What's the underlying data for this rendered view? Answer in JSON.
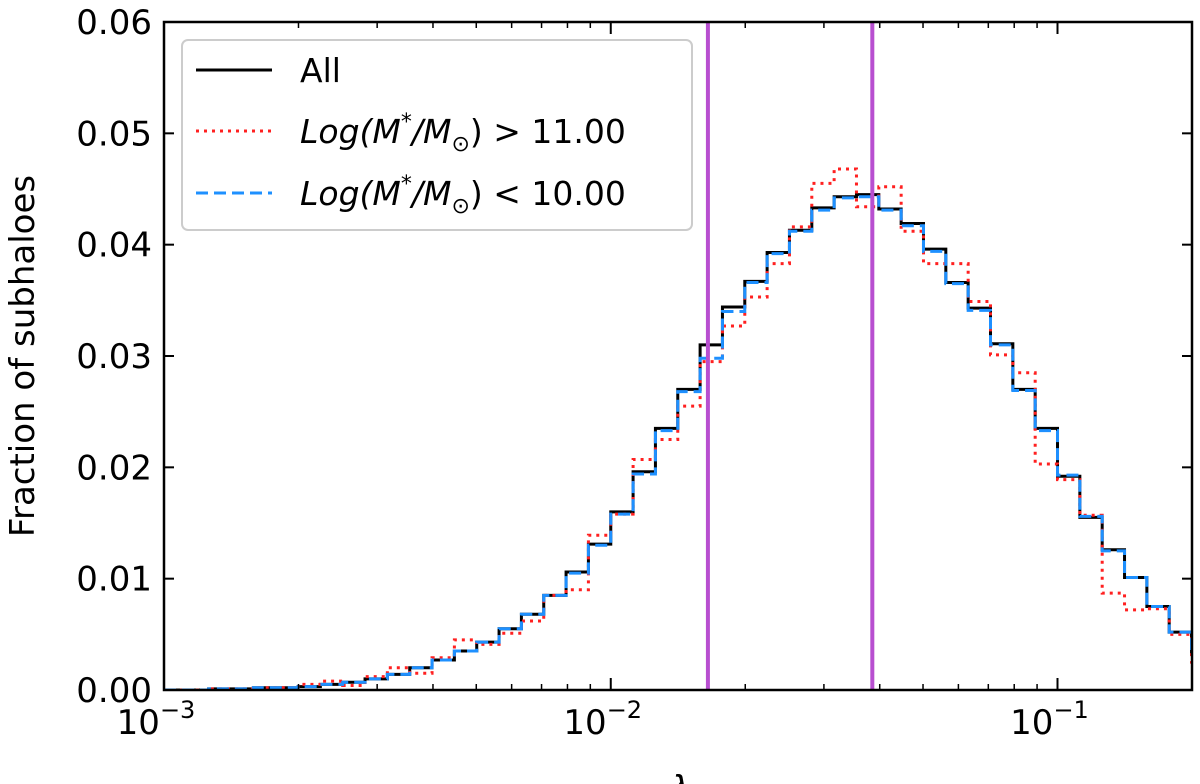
{
  "chart_data": {
    "type": "histogram",
    "xscale": "log",
    "xlim": [
      0.001,
      0.2
    ],
    "ylim": [
      0,
      0.06
    ],
    "xlabel": "λ",
    "ylabel": "Fraction of subhaloes",
    "x_ticks": [
      {
        "value": 0.001,
        "base": "10",
        "exp": "−3"
      },
      {
        "value": 0.01,
        "base": "10",
        "exp": "−2"
      },
      {
        "value": 0.1,
        "base": "10",
        "exp": "−1"
      }
    ],
    "y_ticks": [
      {
        "value": 0.0,
        "label": "0.00"
      },
      {
        "value": 0.01,
        "label": "0.01"
      },
      {
        "value": 0.02,
        "label": "0.02"
      },
      {
        "value": 0.03,
        "label": "0.03"
      },
      {
        "value": 0.04,
        "label": "0.04"
      },
      {
        "value": 0.05,
        "label": "0.05"
      },
      {
        "value": 0.06,
        "label": "0.06"
      }
    ],
    "bin_edges_log10": {
      "start": -3.0,
      "step": 0.05,
      "count": 47
    },
    "series": [
      {
        "name": "All",
        "legend_label": "All",
        "color": "#000000",
        "style": "solid",
        "values": [
          0.0,
          0.0,
          0.0001,
          0.0001,
          0.0002,
          0.0002,
          0.0003,
          0.0005,
          0.0007,
          0.001,
          0.0014,
          0.002,
          0.0027,
          0.0035,
          0.0043,
          0.0055,
          0.0068,
          0.0085,
          0.0106,
          0.0131,
          0.016,
          0.0196,
          0.0235,
          0.027,
          0.031,
          0.0344,
          0.0367,
          0.0393,
          0.0413,
          0.0433,
          0.0443,
          0.0445,
          0.0432,
          0.0419,
          0.0396,
          0.0366,
          0.0343,
          0.0311,
          0.027,
          0.0235,
          0.0192,
          0.0155,
          0.0126,
          0.0101,
          0.0075,
          0.0052,
          0.0032
        ]
      },
      {
        "name": "high-mass",
        "legend_label": "Log(M*/M⊙) > 11.00",
        "legend_main": "Log(M",
        "legend_sup": "*",
        "legend_mid": "/M",
        "legend_sub": "⊙",
        "legend_tail": ") > 11.00",
        "color": "#ff2020",
        "style": "dotted",
        "values": [
          0.0,
          0.0,
          0.0001,
          0.0001,
          0.0002,
          0.0002,
          0.0005,
          0.0008,
          0.0004,
          0.0012,
          0.002,
          0.0015,
          0.0029,
          0.0045,
          0.0041,
          0.0051,
          0.0062,
          0.0085,
          0.009,
          0.0139,
          0.0158,
          0.0207,
          0.0225,
          0.0255,
          0.0295,
          0.0327,
          0.0353,
          0.0383,
          0.0416,
          0.0455,
          0.0468,
          0.0434,
          0.0452,
          0.0412,
          0.0383,
          0.0383,
          0.0349,
          0.0301,
          0.0285,
          0.0203,
          0.0189,
          0.0157,
          0.0087,
          0.0072,
          0.0073,
          0.005,
          0.0025
        ]
      },
      {
        "name": "low-mass",
        "legend_label": "Log(M*/M⊙) < 10.00",
        "legend_main": "Log(M",
        "legend_sup": "*",
        "legend_mid": "/M",
        "legend_sub": "⊙",
        "legend_tail": ") < 10.00",
        "color": "#1e90ff",
        "style": "dashed",
        "values": [
          0.0,
          0.0,
          0.0001,
          0.0001,
          0.0002,
          0.0002,
          0.0003,
          0.0005,
          0.0007,
          0.001,
          0.0014,
          0.002,
          0.0027,
          0.0035,
          0.0043,
          0.0055,
          0.0068,
          0.0085,
          0.0105,
          0.013,
          0.0158,
          0.0194,
          0.0233,
          0.0268,
          0.0298,
          0.034,
          0.0366,
          0.0392,
          0.0412,
          0.0431,
          0.0442,
          0.0443,
          0.0431,
          0.0417,
          0.0394,
          0.0365,
          0.0341,
          0.031,
          0.0269,
          0.0233,
          0.0193,
          0.0156,
          0.0125,
          0.0101,
          0.0075,
          0.0052,
          0.0032
        ]
      }
    ],
    "vertical_lines": [
      {
        "name": "lower",
        "x": 0.0165,
        "color": "#b84fd0"
      },
      {
        "name": "upper",
        "x": 0.0385,
        "color": "#b84fd0"
      }
    ],
    "legend_position": "upper-left"
  }
}
